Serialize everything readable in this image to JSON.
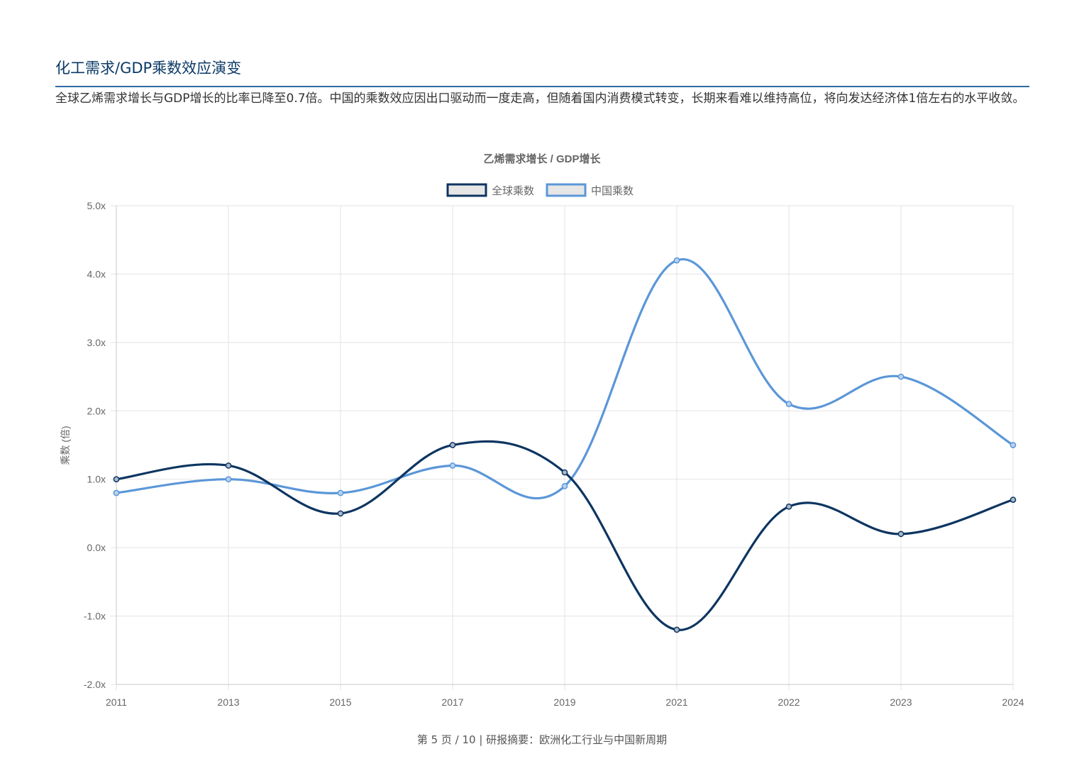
{
  "section": {
    "title": "化工需求/GDP乘数效应演变",
    "description": "全球乙烯需求增长与GDP增长的比率已降至0.7倍。中国的乘数效应因出口驱动而一度走高，但随着国内消费模式转变，长期来看难以维持高位，将向发达经济体1倍左右的水平收敛。"
  },
  "chart_data": {
    "type": "line",
    "title": "乙烯需求增长 / GDP增长",
    "xlabel": "",
    "ylabel": "乘数 (倍)",
    "categories": [
      "2011",
      "2013",
      "2015",
      "2017",
      "2019",
      "2021",
      "2022",
      "2023",
      "2024"
    ],
    "ylim": [
      -2.0,
      5.0
    ],
    "yticks": [
      -2.0,
      -1.0,
      0.0,
      1.0,
      2.0,
      3.0,
      4.0,
      5.0
    ],
    "ytick_suffix": "x",
    "grid": true,
    "legend_position": "top-center",
    "series": [
      {
        "name": "全球乘数",
        "color": "#0d3561",
        "values": [
          1.0,
          1.2,
          0.5,
          1.5,
          1.1,
          -1.2,
          0.6,
          0.2,
          0.7
        ]
      },
      {
        "name": "中国乘数",
        "color": "#5b97d8",
        "values": [
          0.8,
          1.0,
          0.8,
          1.2,
          0.9,
          4.2,
          2.1,
          2.5,
          1.5
        ]
      }
    ]
  },
  "footer": {
    "text": "第 5 页 / 10 | 研报摘要：欧洲化工行业与中国新周期"
  }
}
